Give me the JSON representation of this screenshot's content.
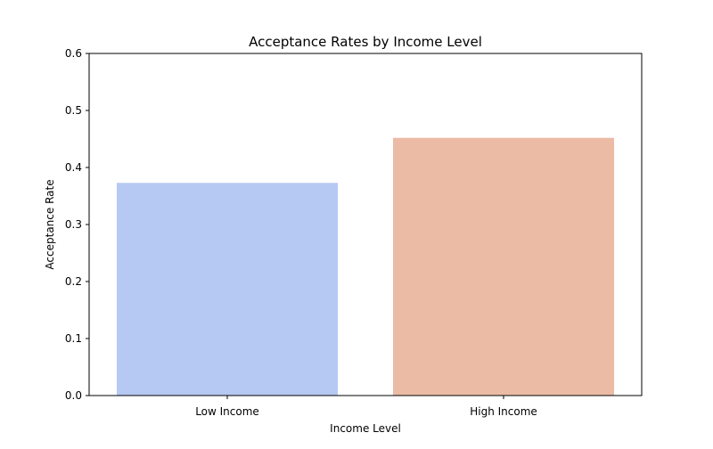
{
  "chart_data": {
    "type": "bar",
    "title": "Acceptance Rates by Income Level",
    "xlabel": "Income Level",
    "ylabel": "Acceptance Rate",
    "categories": [
      "Low Income",
      "High Income"
    ],
    "values": [
      0.373,
      0.452
    ],
    "colors": [
      "#b5c9f2",
      "#ebbba5"
    ],
    "ylim": [
      0,
      0.6
    ],
    "yticks": [
      "0.0",
      "0.1",
      "0.2",
      "0.3",
      "0.4",
      "0.5",
      "0.6"
    ],
    "grid": false,
    "legend": false
  }
}
